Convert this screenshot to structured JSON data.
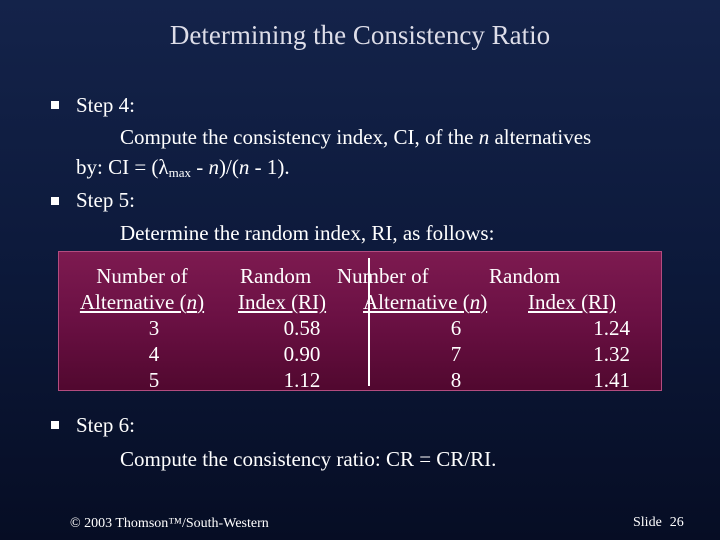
{
  "slide": {
    "title": "Determining the Consistency Ratio",
    "step4_label": "Step 4:",
    "step4_line1_pre": "Compute the consistency index, CI, of the ",
    "step4_line1_n": "n",
    "step4_line1_post": " alternatives",
    "step4_line2_pre": "by:  CI = (",
    "lambda_symbol": "λ",
    "lambda_sub": "max",
    "step4_line2_mid": " - ",
    "step4_line2_n1": "n",
    "step4_line2_mid2": ")/(",
    "step4_line2_n2": "n",
    "step4_line2_post": " - 1).",
    "step5_label": "Step 5:",
    "step5_text": "Determine the random index, RI, as follows:",
    "step6_label": "Step 6:",
    "step6_text": "Compute the consistency ratio:  CR = CR/RI."
  },
  "table": {
    "h1_top": "Number of",
    "h1_bottom_pre": "Alternative (",
    "h1_bottom_n": "n",
    "h1_bottom_post": ")",
    "h2_top": "Random",
    "h2_bottom": "Index (RI)",
    "h3_top": "Number of",
    "h3_bottom_pre": "Alternative (",
    "h3_bottom_n": "n",
    "h3_bottom_post": ")",
    "h4_top": "Random",
    "h4_bottom": "Index (RI)",
    "left_n": [
      "3",
      "4",
      "5"
    ],
    "left_ri": [
      "0.58",
      "0.90",
      "1.12"
    ],
    "right_n": [
      "6",
      "7",
      "8"
    ],
    "right_ri": [
      "1.24",
      "1.32",
      "1.41"
    ]
  },
  "footer": {
    "copyright": "© 2003 Thomson™/South-Western",
    "slide_label": "Slide",
    "slide_number": "26"
  }
}
